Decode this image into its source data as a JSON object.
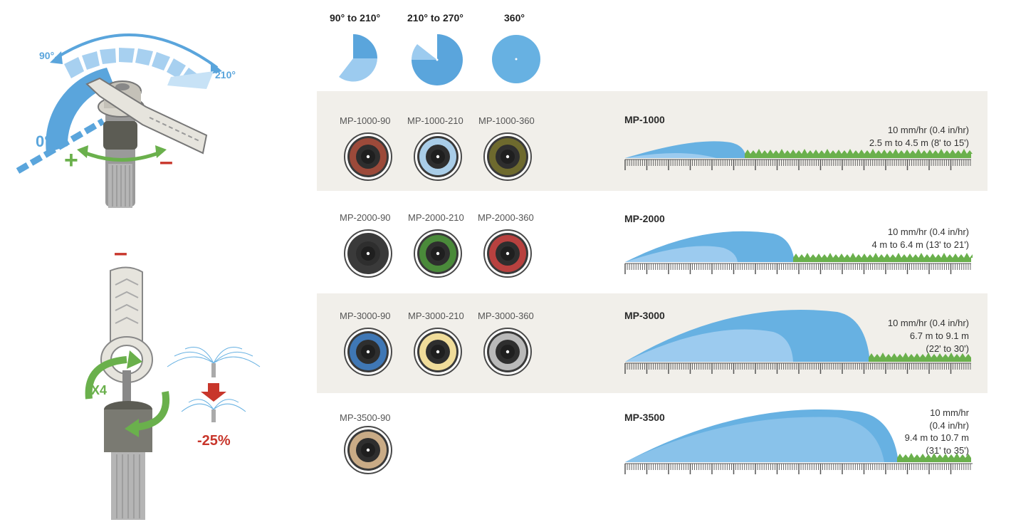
{
  "left_illustration": {
    "angle_min": "90°",
    "angle_max": "210°",
    "angle_zero": "0°",
    "plus_sign": "+",
    "minus_sign": "–",
    "minus_top": "–",
    "turns": "X4",
    "reduction": "-25%"
  },
  "arc_patterns": [
    {
      "label": "90° to 210°"
    },
    {
      "label": "210° to 270°"
    },
    {
      "label": "360°"
    }
  ],
  "series": [
    {
      "name": "MP-1000",
      "rate": "10 mm/hr (0.4 in/hr)",
      "radius": "2.5 m to 4.5 m (8' to 15')",
      "models": [
        {
          "label": "MP-1000-90",
          "color": "#9c4a3a"
        },
        {
          "label": "MP-1000-210",
          "color": "#a9cde8"
        },
        {
          "label": "MP-1000-360",
          "color": "#6e6a2e"
        }
      ]
    },
    {
      "name": "MP-2000",
      "rate": "10 mm/hr (0.4 in/hr)",
      "radius": "4 m to 6.4 m (13' to 21')",
      "models": [
        {
          "label": "MP-2000-90",
          "color": "#3a3a3a"
        },
        {
          "label": "MP-2000-210",
          "color": "#4a8a3a"
        },
        {
          "label": "MP-2000-360",
          "color": "#b8413f"
        }
      ]
    },
    {
      "name": "MP-3000",
      "rate": "10 mm/hr (0.4 in/hr)",
      "radius_line1": "6.7 m to 9.1 m",
      "radius_line2": "(22' to 30')",
      "models": [
        {
          "label": "MP-3000-90",
          "color": "#3f77b5"
        },
        {
          "label": "MP-3000-210",
          "color": "#f0dc9a"
        },
        {
          "label": "MP-3000-360",
          "color": "#b9b9b9"
        }
      ]
    },
    {
      "name": "MP-3500",
      "rate_line1": "10 mm/hr",
      "rate_line2": "(0.4 in/hr)",
      "radius_line1": "9.4 m to 10.7 m",
      "radius_line2": "(31' to 35')",
      "models": [
        {
          "label": "MP-3500-90",
          "color": "#c9ab86"
        }
      ]
    }
  ],
  "colors": {
    "water": "#67b1e2",
    "water_light": "#9ccbef",
    "grass": "#6ab04c",
    "band": "#f1efea",
    "minus_red": "#c8362b",
    "plus_green": "#6ab04c"
  }
}
